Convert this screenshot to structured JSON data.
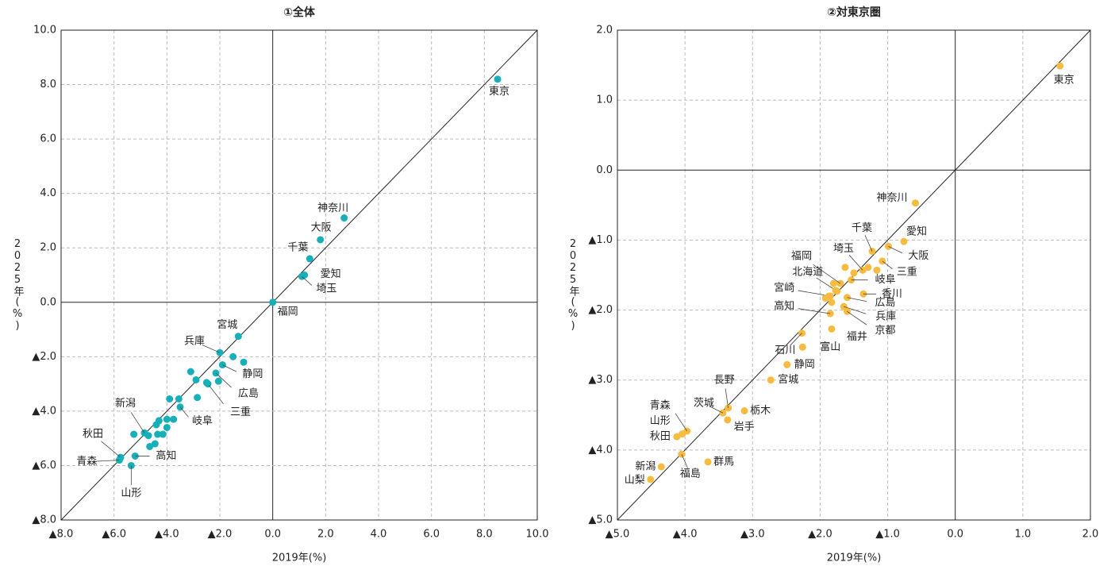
{
  "chart_data": [
    {
      "type": "scatter",
      "title": "①全体",
      "x_label": "2019年(%)",
      "y_label": "2025年(%)",
      "color": "#17b0b8",
      "grid": true,
      "xlim": [
        -8,
        10
      ],
      "ylim": [
        -8,
        10
      ],
      "xticks": [
        {
          "value": -8,
          "label": "▲8.0"
        },
        {
          "value": -6,
          "label": "▲6.0"
        },
        {
          "value": -4,
          "label": "▲4.0"
        },
        {
          "value": -2,
          "label": "▲2.0"
        },
        {
          "value": 0,
          "label": "0.0"
        },
        {
          "value": 2,
          "label": "2.0"
        },
        {
          "value": 4,
          "label": "4.0"
        },
        {
          "value": 6,
          "label": "6.0"
        },
        {
          "value": 8,
          "label": "8.0"
        },
        {
          "value": 10,
          "label": "10.0"
        }
      ],
      "yticks": [
        {
          "value": -8,
          "label": "▲8.0"
        },
        {
          "value": -6,
          "label": "▲6.0"
        },
        {
          "value": -4,
          "label": "▲4.0"
        },
        {
          "value": -2,
          "label": "▲2.0"
        },
        {
          "value": 0,
          "label": "0.0"
        },
        {
          "value": 2,
          "label": "2.0"
        },
        {
          "value": 4,
          "label": "4.0"
        },
        {
          "value": 6,
          "label": "6.0"
        },
        {
          "value": 8,
          "label": "8.0"
        },
        {
          "value": 10,
          "label": "10.0"
        }
      ],
      "series": [
        {
          "x": [
            8.5,
            2.7,
            1.8,
            1.4,
            1.2,
            1.1,
            0,
            -1.3,
            -2.0,
            -1.9,
            -2.15,
            -2.45,
            -3.5,
            -4.85,
            -5.75,
            -5.8,
            -5.2,
            -5.35,
            -1.1,
            -1.5,
            -2.05,
            -3.1,
            -2.9,
            -2.5,
            -2.85,
            -3.55,
            -3.9,
            -3.75,
            -4.0,
            -4.0,
            -4.4,
            -4.15,
            -4.35,
            -4.7,
            -4.45,
            -4.65,
            -5.25,
            -4.3
          ],
          "values": [
            8.2,
            3.1,
            2.3,
            1.6,
            1.0,
            0.95,
            0,
            -1.25,
            -1.85,
            -2.3,
            -2.6,
            -3.0,
            -3.85,
            -4.8,
            -5.7,
            -5.8,
            -5.65,
            -6.0,
            -2.2,
            -2.0,
            -2.9,
            -2.55,
            -2.85,
            -2.95,
            -3.5,
            -3.55,
            -3.55,
            -4.3,
            -4.3,
            -4.6,
            -4.5,
            -4.85,
            -4.85,
            -4.9,
            -5.2,
            -5.3,
            -4.85,
            -4.35
          ],
          "labels": [
            "東京",
            "神奈川",
            "大阪",
            "千葉",
            "愛知",
            "埼玉",
            "福岡",
            "宮城",
            "兵庫",
            "静岡",
            "広島",
            "三重",
            "岐阜",
            "新潟",
            "秋田",
            "青森",
            "高知",
            "山形",
            null,
            null,
            null,
            null,
            null,
            null,
            null,
            null,
            null,
            null,
            null,
            null,
            null,
            null,
            null,
            null,
            null,
            null,
            null,
            null
          ]
        }
      ]
    },
    {
      "type": "scatter",
      "title": "②対東京圏",
      "x_label": "2019年(%)",
      "y_label": "2025年(%)",
      "color": "#f7bb3f",
      "grid": true,
      "xlim": [
        -5,
        2
      ],
      "ylim": [
        -5,
        2
      ],
      "xticks": [
        {
          "value": -5,
          "label": "▲5.0"
        },
        {
          "value": -4,
          "label": "▲4.0"
        },
        {
          "value": -3,
          "label": "▲3.0"
        },
        {
          "value": -2,
          "label": "▲2.0"
        },
        {
          "value": -1,
          "label": "▲1.0"
        },
        {
          "value": 0,
          "label": "0.0"
        },
        {
          "value": 1,
          "label": "1.0"
        },
        {
          "value": 2,
          "label": "2.0"
        }
      ],
      "yticks": [
        {
          "value": -5,
          "label": "▲5.0"
        },
        {
          "value": -4,
          "label": "▲4.0"
        },
        {
          "value": -3,
          "label": "▲3.0"
        },
        {
          "value": -2,
          "label": "▲2.0"
        },
        {
          "value": -1,
          "label": "▲1.0"
        },
        {
          "value": 0,
          "label": "0.0"
        },
        {
          "value": 1,
          "label": "1.0"
        },
        {
          "value": 2,
          "label": "2.0"
        }
      ],
      "series": [
        {
          "x": [
            1.55,
            -0.59,
            -0.76,
            -0.99,
            -1.23,
            -1.08,
            -1.37,
            -1.54,
            -1.7,
            -1.75,
            -1.85,
            -1.85,
            -1.36,
            -1.6,
            -1.65,
            -1.6,
            -2.27,
            -1.83,
            -2.26,
            -2.49,
            -2.73,
            -3.36,
            -3.12,
            -3.44,
            -3.37,
            -3.97,
            -4.04,
            -4.12,
            -4.05,
            -3.66,
            -4.35,
            -4.51,
            -1.29,
            -1.63,
            -1.5,
            -1.16,
            -1.8,
            -1.87,
            -1.83,
            -1.92,
            -1.77
          ],
          "values": [
            1.49,
            -0.47,
            -1.02,
            -1.09,
            -1.16,
            -1.3,
            -1.43,
            -1.57,
            -1.62,
            -1.73,
            -1.8,
            -2.05,
            -1.77,
            -1.82,
            -1.95,
            -2.02,
            -2.33,
            -2.27,
            -2.53,
            -2.78,
            -3.0,
            -3.4,
            -3.44,
            -3.47,
            -3.57,
            -3.73,
            -3.77,
            -3.81,
            -4.06,
            -4.17,
            -4.24,
            -4.42,
            -1.39,
            -1.39,
            -1.47,
            -1.43,
            -1.62,
            -1.8,
            -1.89,
            -1.83,
            -1.72
          ],
          "labels": [
            "東京",
            "神奈川",
            "愛知",
            "大阪",
            "千葉",
            "三重",
            "埼玉",
            "岐阜",
            "福岡",
            "北海道",
            "宮崎",
            "高知",
            "香川",
            "広島",
            "兵庫",
            "京都",
            "石川",
            "福井",
            "富山",
            "静岡",
            "宮城",
            "長野",
            "栃木",
            "茨城",
            "岩手",
            "青森",
            "山形",
            "秋田",
            "福島",
            "群馬",
            "新潟",
            "山梨",
            null,
            null,
            null,
            null,
            null,
            null,
            null,
            null,
            null
          ]
        }
      ]
    }
  ]
}
